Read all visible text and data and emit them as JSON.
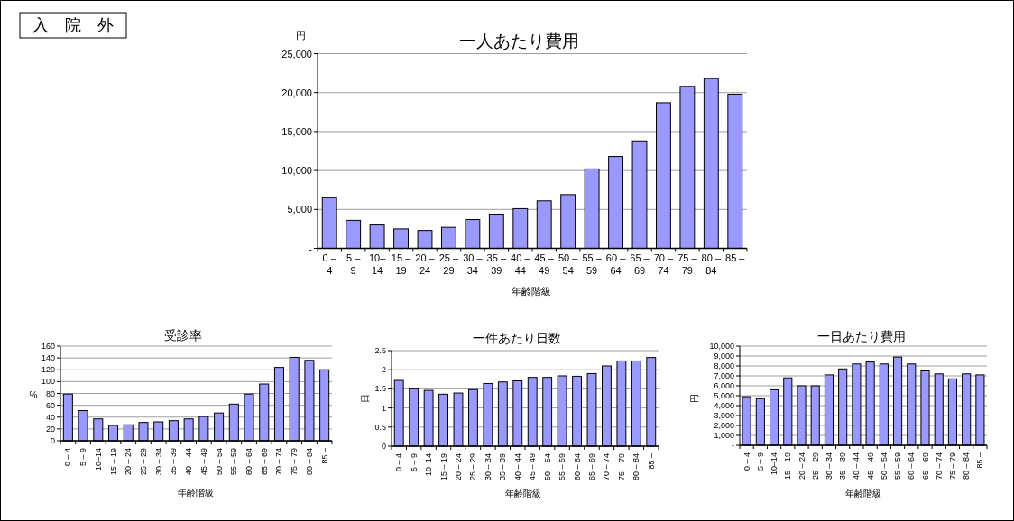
{
  "chart_data": [
    {
      "type": "bar",
      "title": "一人あたり費用",
      "xlabel": "年齢階級",
      "ylabel": "円",
      "annotations": [
        "入　院　外"
      ],
      "color": "#9999ff",
      "grid": "y",
      "categories": [
        "0 – 4",
        "5 – 9",
        "10–14",
        "15 – 19",
        "20 – 24",
        "25 – 29",
        "30 – 34",
        "35 – 39",
        "40 – 44",
        "45 – 49",
        "50 – 54",
        "55 – 59",
        "60 – 64",
        "65 – 69",
        "70 – 74",
        "75 – 79",
        "80 – 84",
        "85 –"
      ],
      "values": [
        6500,
        3600,
        3000,
        2500,
        2300,
        2700,
        3700,
        4400,
        5100,
        6100,
        6900,
        10200,
        11800,
        13800,
        18700,
        20800,
        21800,
        19800
      ],
      "ylim": [
        0,
        25000
      ],
      "yticks": [
        {
          "value": 0,
          "label": "-"
        },
        {
          "value": 5000,
          "label": "5,000"
        },
        {
          "value": 10000,
          "label": "10,000"
        },
        {
          "value": 15000,
          "label": "15,000"
        },
        {
          "value": 20000,
          "label": "20,000"
        },
        {
          "value": 25000,
          "label": "25,000"
        }
      ]
    },
    {
      "type": "bar",
      "title": "受診率",
      "xlabel": "年齢階級",
      "ylabel": "%",
      "color": "#9999ff",
      "grid": "y",
      "categories": [
        "0 – 4",
        "5 – 9",
        "10–14",
        "15 – 19",
        "20 – 24",
        "25 – 29",
        "30 – 34",
        "35 – 39",
        "40 – 44",
        "45 – 49",
        "50 – 54",
        "55 – 59",
        "60 – 64",
        "65 – 69",
        "70 – 74",
        "75 – 79",
        "80 – 84",
        "85 –"
      ],
      "values": [
        79,
        51,
        37,
        26,
        27,
        31,
        32,
        34,
        37,
        41,
        47,
        62,
        79,
        96,
        124,
        141,
        136,
        120
      ],
      "ylim": [
        0,
        160
      ],
      "yticks": [
        0,
        20,
        40,
        60,
        80,
        100,
        120,
        140,
        160
      ]
    },
    {
      "type": "bar",
      "title": "一件あたり日数",
      "xlabel": "年齢階級",
      "ylabel": "日",
      "color": "#9999ff",
      "grid": "y",
      "categories": [
        "0 – 4",
        "5 – 9",
        "10–14",
        "15 – 19",
        "20 – 24",
        "25 – 29",
        "30 – 34",
        "35 – 39",
        "40 – 44",
        "45 – 49",
        "50 – 54",
        "55 – 59",
        "60 – 64",
        "65 – 69",
        "70 – 74",
        "75 – 79",
        "80 – 84",
        "85 –"
      ],
      "values": [
        1.72,
        1.5,
        1.46,
        1.36,
        1.39,
        1.48,
        1.64,
        1.68,
        1.71,
        1.8,
        1.8,
        1.84,
        1.83,
        1.9,
        2.1,
        2.23,
        2.23,
        2.32
      ],
      "ylim": [
        0,
        2.5
      ],
      "yticks": [
        0,
        0.5,
        1,
        1.5,
        2,
        2.5
      ]
    },
    {
      "type": "bar",
      "title": "一日あたり費用",
      "xlabel": "年齢階級",
      "ylabel": "円",
      "color": "#9999ff",
      "grid": "y",
      "categories": [
        "0 – 4",
        "5 – 9",
        "10–14",
        "15 – 19",
        "20 – 24",
        "25 – 29",
        "30 – 34",
        "35 – 39",
        "40 – 44",
        "45 – 49",
        "50 – 54",
        "55 – 59",
        "60 – 64",
        "65 – 69",
        "70 – 74",
        "75 – 79",
        "80 – 84",
        "85 –"
      ],
      "values": [
        4900,
        4700,
        5600,
        6800,
        6000,
        6000,
        7100,
        7700,
        8200,
        8400,
        8200,
        8900,
        8200,
        7500,
        7200,
        6700,
        7200,
        7100
      ],
      "ylim": [
        0,
        10000
      ],
      "yticks": [
        {
          "value": 0,
          "label": "-"
        },
        {
          "value": 1000,
          "label": "1,000"
        },
        {
          "value": 2000,
          "label": "2,000"
        },
        {
          "value": 3000,
          "label": "3,000"
        },
        {
          "value": 4000,
          "label": "4,000"
        },
        {
          "value": 5000,
          "label": "5,000"
        },
        {
          "value": 6000,
          "label": "6,000"
        },
        {
          "value": 7000,
          "label": "7,000"
        },
        {
          "value": 8000,
          "label": "8,000"
        },
        {
          "value": 9000,
          "label": "9,000"
        },
        {
          "value": 10000,
          "label": "10,000"
        }
      ]
    }
  ]
}
